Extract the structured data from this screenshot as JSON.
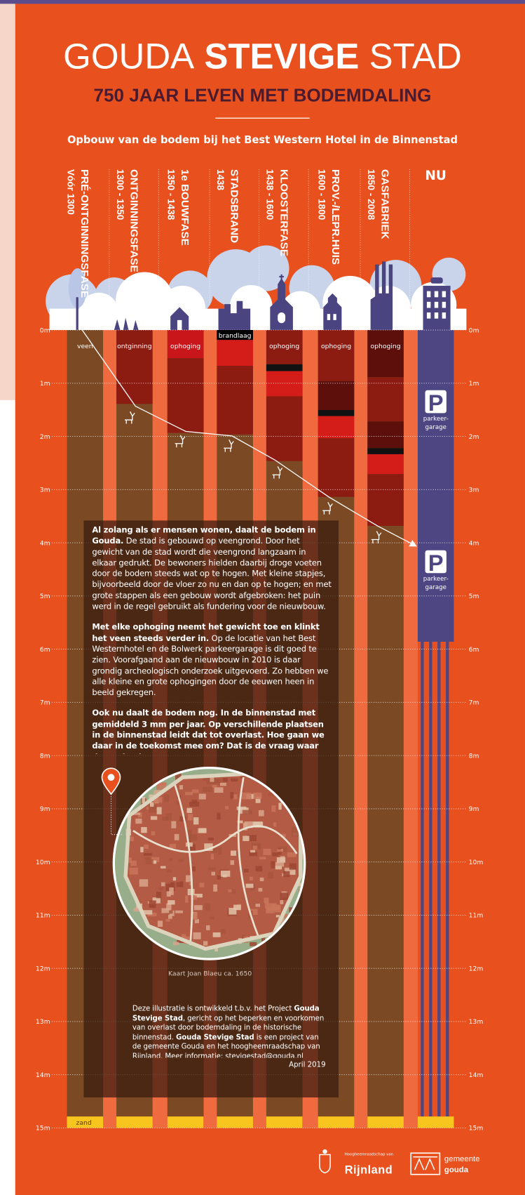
{
  "header": {
    "title": [
      "GOUDA",
      "STEVIGE",
      "STAD"
    ],
    "subtitle": "750 JAAR LEVEN MET BODEMDALING",
    "intro": "Opbouw van de bodem bij het Best Western Hotel in de Binnenstad"
  },
  "phases": [
    {
      "name": "PRÉ-ONTGINNINGSFASE",
      "period": "Vóór 1300",
      "layer": "veen"
    },
    {
      "name": "ONTGINNINGSFASE",
      "period": "1300 - 1350",
      "layer": "ontginning"
    },
    {
      "name": "1e BOUWFASE",
      "period": "1350 - 1438",
      "layer": "ophoging"
    },
    {
      "name": "STADSBRAND",
      "period": "1438",
      "layer": "brandlaag"
    },
    {
      "name": "KLOOSTERFASE",
      "period": "1438 - 1600",
      "layer": "ophoging"
    },
    {
      "name": "PROV.-/LEPR.HUIS",
      "period": "1600 - 1800",
      "layer": "ophoging"
    },
    {
      "name": "GASFABRIEK",
      "period": "1850 - 2008",
      "layer": "ophoging"
    },
    {
      "name": "NU"
    }
  ],
  "parking": {
    "symbol": "P",
    "label": [
      "parkeer-",
      "garage"
    ]
  },
  "bottom_layer": "zand",
  "depth_ticks": [
    "0m",
    "1m",
    "2m",
    "3m",
    "4m",
    "5m",
    "6m",
    "7m",
    "8m",
    "9m",
    "10m",
    "11m",
    "12m",
    "13m",
    "14m",
    "15m"
  ],
  "text_box": {
    "paragraphs": [
      [
        {
          "text": "Al zolang als er mensen wonen, daalt de bodem in Gouda.",
          "bold": true
        },
        {
          "text": " De stad is gebouwd op veengrond. Door het gewicht van de stad wordt die veengrond langzaam in elkaar gedrukt. De bewoners hielden daarbij droge voeten door de bodem steeds wat op te hogen. Met kleine stapjes, bijvoorbeeld door de vloer zo nu en dan op te hogen; en met grote stappen als een gebouw wordt afgebroken: het puin werd in de regel gebruikt als fundering voor de nieuwbouw.",
          "bold": false
        }
      ],
      [
        {
          "text": "Met elke ophoging neemt het gewicht toe en klinkt het veen steeds verder in.",
          "bold": true
        },
        {
          "text": " Op de locatie van het Best Westernhotel en de Bolwerk parkeergarage is dit goed te zien. Voorafgaand aan de nieuwbouw in 2010 is daar grondig archeologisch onderzoek uitgevoerd. Zo hebben we alle kleine en grote ophogingen door de eeuwen heen in beeld gekregen.",
          "bold": false
        }
      ],
      [
        {
          "text": "Ook nu daalt de bodem nog. In de binnenstad met gemiddeld 3 mm per jaar. Op verschillende plaatsen in de binnenstad leidt dat tot overlast. Hoe gaan we daar in de toekomst mee om? Dat is de vraag waar de stad ook nu weer voor staat.",
          "bold": true
        }
      ]
    ]
  },
  "map": {
    "caption": "Kaart Joan Blaeu ca. 1650"
  },
  "credit": {
    "segments": [
      {
        "text": "Deze illustratie is ontwikkeld t.b.v. het Project ",
        "bold": false
      },
      {
        "text": "Gouda Stevige Stad",
        "bold": true
      },
      {
        "text": ", gericht op het beperken en voorkomen van overlast door bodemdaling in de historische binnenstad. ",
        "bold": false
      },
      {
        "text": "Gouda Stevige Stad",
        "bold": true
      },
      {
        "text": " is een project van de gemeente Gouda en het hoogheemraadschap van Rijnland. Meer informatie: stevigestad@gouda.nl",
        "bold": false
      }
    ],
    "date": "April 2019"
  },
  "logos": {
    "rijnland": [
      "Hoogheemraadschap van",
      "Rijnland"
    ],
    "gouda": [
      "gemeente",
      "gouda"
    ]
  }
}
